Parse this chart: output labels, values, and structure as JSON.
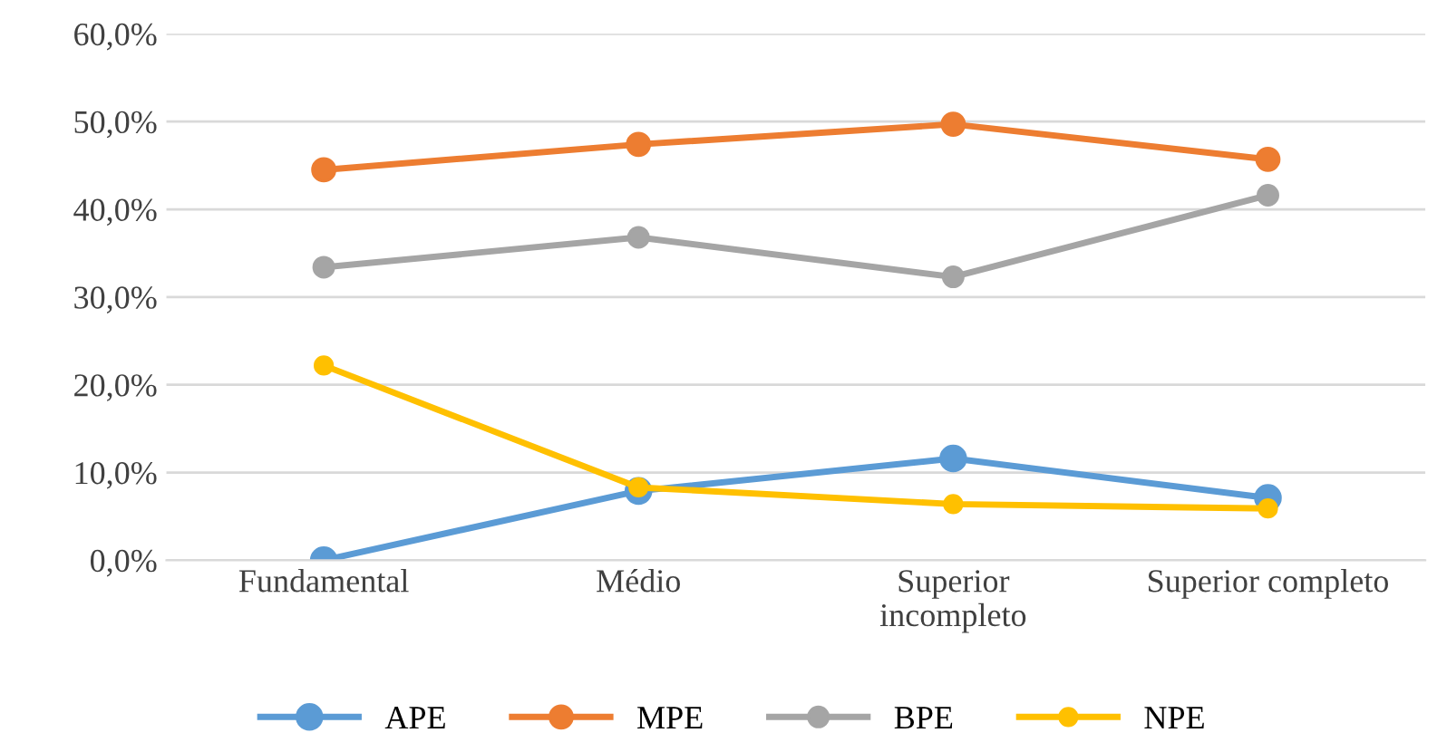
{
  "chart_data": {
    "type": "line",
    "categories": [
      "Fundamental",
      "Médio",
      "Superior\nincompleto",
      "Superior completo"
    ],
    "series": [
      {
        "name": "APE",
        "color": "#5b9bd5",
        "values": [
          0.0,
          7.9,
          11.6,
          7.1
        ]
      },
      {
        "name": "MPE",
        "color": "#ed7d31",
        "values": [
          44.5,
          47.4,
          49.7,
          45.7
        ]
      },
      {
        "name": "BPE",
        "color": "#a5a5a5",
        "values": [
          33.4,
          36.8,
          32.3,
          41.6
        ]
      },
      {
        "name": "NPE",
        "color": "#ffc000",
        "values": [
          22.2,
          8.3,
          6.4,
          5.9
        ]
      }
    ],
    "ylim": [
      0,
      60
    ],
    "yticks": [
      {
        "value": 0,
        "label": "0,0%"
      },
      {
        "value": 10,
        "label": "10,0%"
      },
      {
        "value": 20,
        "label": "20,0%"
      },
      {
        "value": 30,
        "label": "30,0%"
      },
      {
        "value": 40,
        "label": "40,0%"
      },
      {
        "value": 50,
        "label": "50,0%"
      },
      {
        "value": 60,
        "label": "60,0%"
      }
    ],
    "grid": "y",
    "legend": "bottom",
    "marker": "circle",
    "line_style": "solid"
  }
}
